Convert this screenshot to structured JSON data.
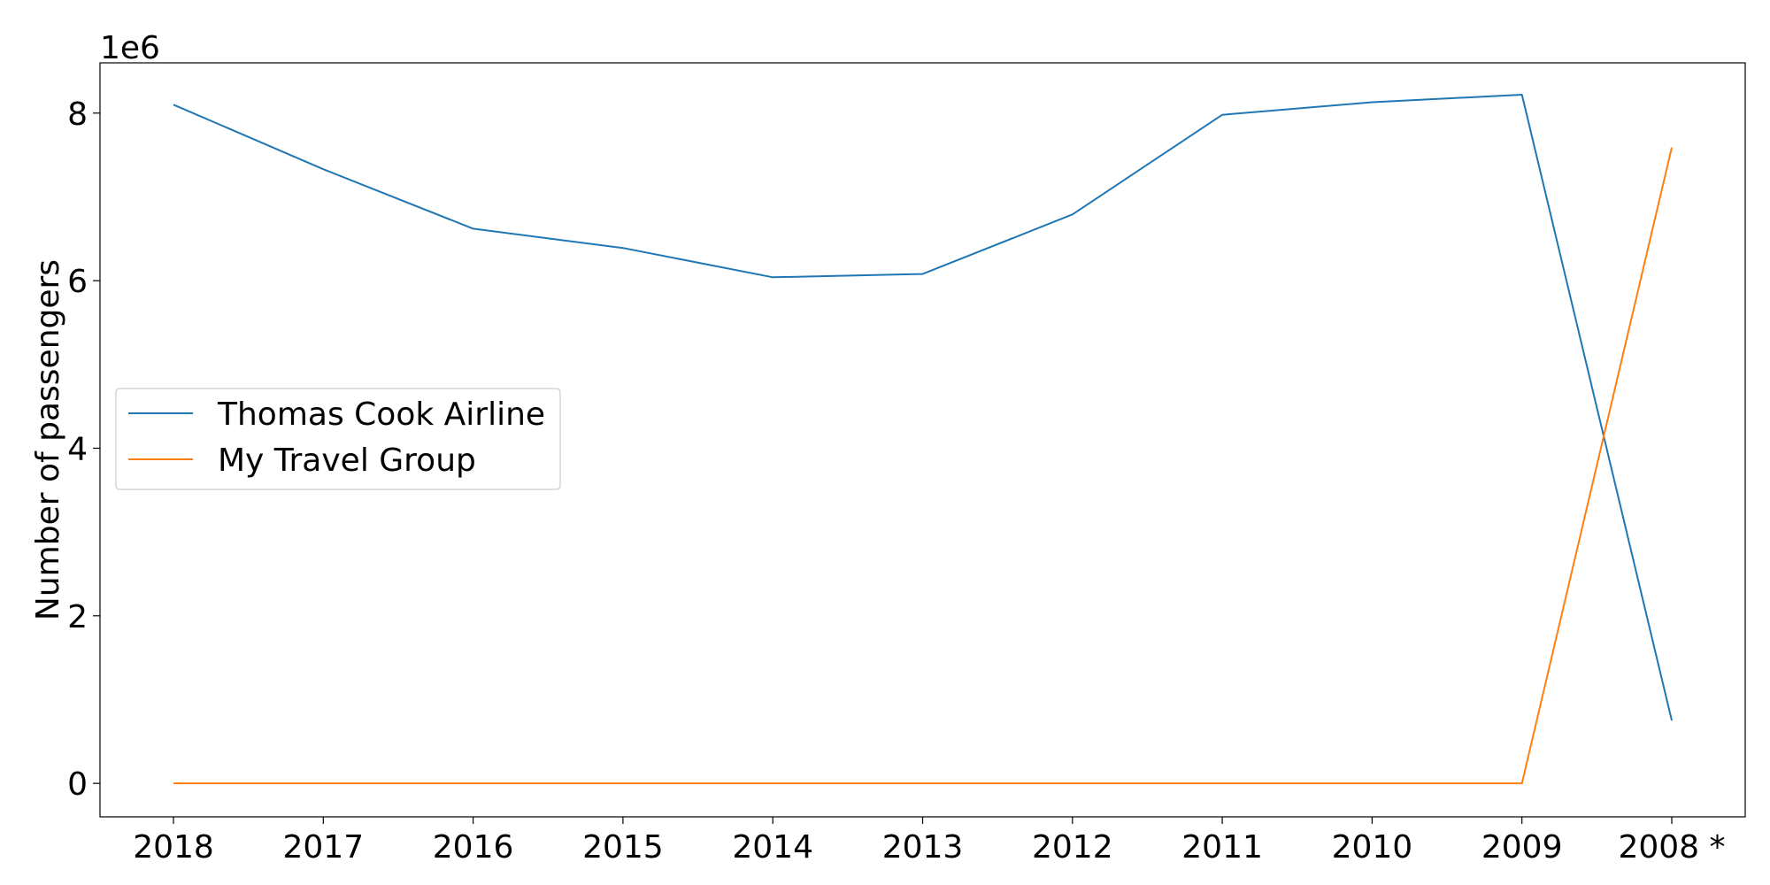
{
  "chart_data": {
    "type": "line",
    "categories": [
      "2018",
      "2017",
      "2016",
      "2015",
      "2014",
      "2013",
      "2012",
      "2011",
      "2010",
      "2009",
      "2008 *"
    ],
    "series": [
      {
        "name": "Thomas Cook Airline",
        "color": "#1f77b4",
        "values": [
          8100000,
          7330000,
          6620000,
          6390000,
          6040000,
          6080000,
          6790000,
          7980000,
          8130000,
          8220000,
          750000
        ]
      },
      {
        "name": "My Travel Group",
        "color": "#ff7f0e",
        "values": [
          0,
          0,
          0,
          0,
          0,
          0,
          0,
          0,
          0,
          0,
          7590000
        ]
      }
    ],
    "ylabel": "Number of passengers",
    "xlabel": "",
    "y_offset_label": "1e6",
    "y_ticks": [
      0,
      2,
      4,
      6,
      8
    ],
    "y_tick_multiplier": 1000000,
    "ylim": [
      -400000,
      8600000
    ],
    "grid": false,
    "legend_position": "center-left"
  }
}
